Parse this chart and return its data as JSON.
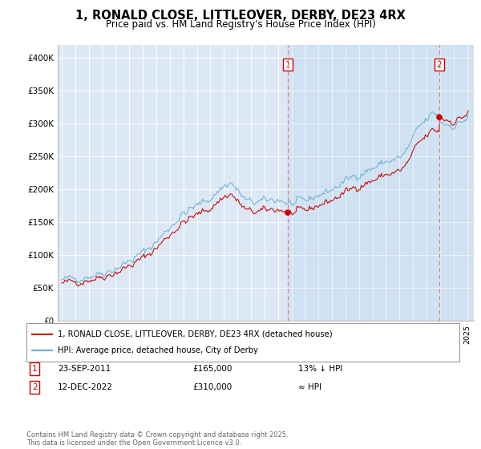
{
  "title": "1, RONALD CLOSE, LITTLEOVER, DERBY, DE23 4RX",
  "subtitle": "Price paid vs. HM Land Registry's House Price Index (HPI)",
  "legend_line1": "1, RONALD CLOSE, LITTLEOVER, DERBY, DE23 4RX (detached house)",
  "legend_line2": "HPI: Average price, detached house, City of Derby",
  "annotation1_label": "1",
  "annotation1_date": "23-SEP-2011",
  "annotation1_price": "£165,000",
  "annotation1_hpi": "13% ↓ HPI",
  "annotation2_label": "2",
  "annotation2_date": "12-DEC-2022",
  "annotation2_price": "£310,000",
  "annotation2_hpi": "≈ HPI",
  "footer": "Contains HM Land Registry data © Crown copyright and database right 2025.\nThis data is licensed under the Open Government Licence v3.0.",
  "hpi_color": "#6baed6",
  "price_color": "#cc0000",
  "vline_color": "#e87878",
  "ylim": [
    0,
    420000
  ],
  "yticks": [
    0,
    50000,
    100000,
    150000,
    200000,
    250000,
    300000,
    350000,
    400000
  ],
  "ytick_labels": [
    "£0",
    "£50K",
    "£100K",
    "£150K",
    "£200K",
    "£250K",
    "£300K",
    "£350K",
    "£400K"
  ],
  "plot_bg": "#dce9f5",
  "sale1_year": 2011.73,
  "sale1_value": 165000,
  "sale2_year": 2022.95,
  "sale2_value": 310000,
  "hpi_seed": 42,
  "xlim_left": 1994.7,
  "xlim_right": 2025.5
}
